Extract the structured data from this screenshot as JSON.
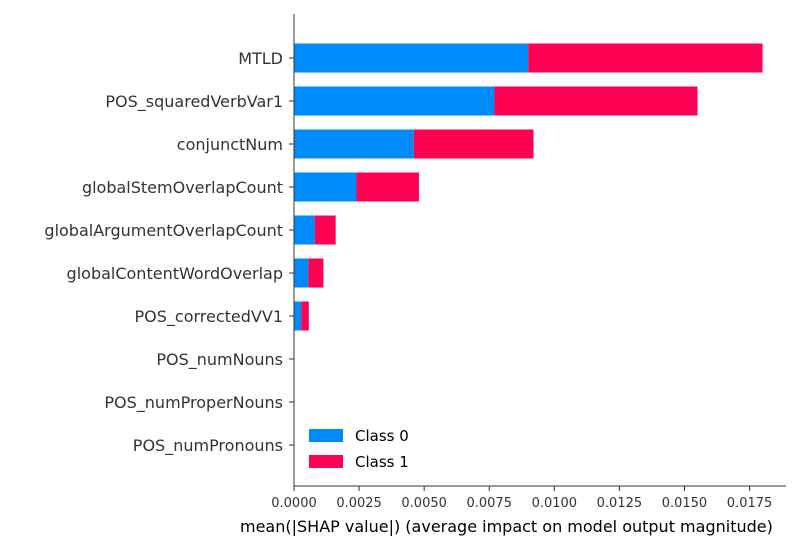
{
  "chart_data": {
    "type": "bar",
    "orientation": "horizontal",
    "stacked": true,
    "categories": [
      "MTLD",
      "POS_squaredVerbVar1",
      "conjunctNum",
      "globalStemOverlapCount",
      "globalArgumentOverlapCount",
      "globalContentWordOverlap",
      "POS_correctedVV1",
      "POS_numNouns",
      "POS_numProperNouns",
      "POS_numPronouns"
    ],
    "series": [
      {
        "name": "Class 0",
        "color": "#008bfb",
        "values": [
          0.009,
          0.0077,
          0.0046,
          0.0024,
          0.0008,
          0.00055,
          0.00028,
          0.0,
          0.0,
          0.0
        ]
      },
      {
        "name": "Class 1",
        "color": "#ff0052",
        "values": [
          0.009,
          0.0078,
          0.0046,
          0.0024,
          0.0008,
          0.00058,
          0.00029,
          0.0,
          0.0,
          0.0
        ]
      }
    ],
    "xlim": [
      0.0,
      0.0189
    ],
    "xticks": [
      "0.0000",
      "0.0025",
      "0.0050",
      "0.0075",
      "0.0100",
      "0.0125",
      "0.0150",
      "0.0175"
    ],
    "xtick_values": [
      0.0,
      0.0025,
      0.005,
      0.0075,
      0.01,
      0.0125,
      0.015,
      0.0175
    ],
    "xlabel": "mean(|SHAP value|) (average impact on model output magnitude)",
    "ylabel": "",
    "title": "",
    "legend_position": "lower-center",
    "grid": false
  }
}
